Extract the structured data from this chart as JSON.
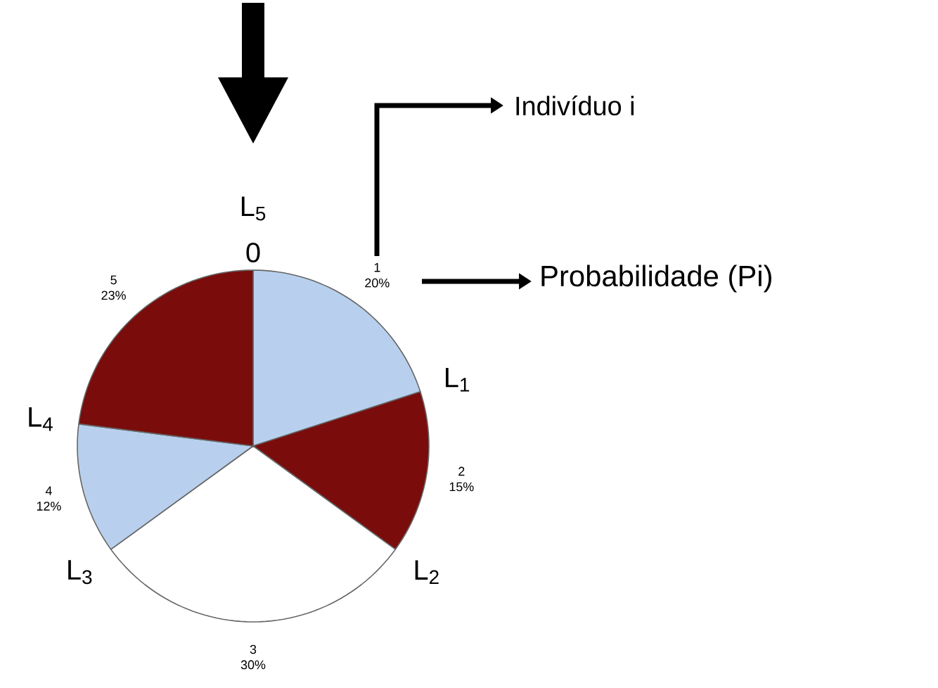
{
  "chart_data": {
    "type": "pie",
    "categories": [
      "1",
      "2",
      "3",
      "4",
      "5"
    ],
    "values": [
      20,
      15,
      30,
      12,
      23
    ],
    "colors": [
      "#b8d0ee",
      "#7a0c0c",
      "#ffffff",
      "#b8d0ee",
      "#7a0c0c"
    ],
    "value_labels": [
      "20%",
      "15%",
      "30%",
      "12%",
      "23%"
    ],
    "annotations": [
      "L$_{1}$",
      "L$_{2}$",
      "L$_{3}$",
      "L$_{4}$",
      "L$_{5}$",
      "0",
      "Indivíduo i",
      "Probabilidade (Pi)"
    ]
  }
}
